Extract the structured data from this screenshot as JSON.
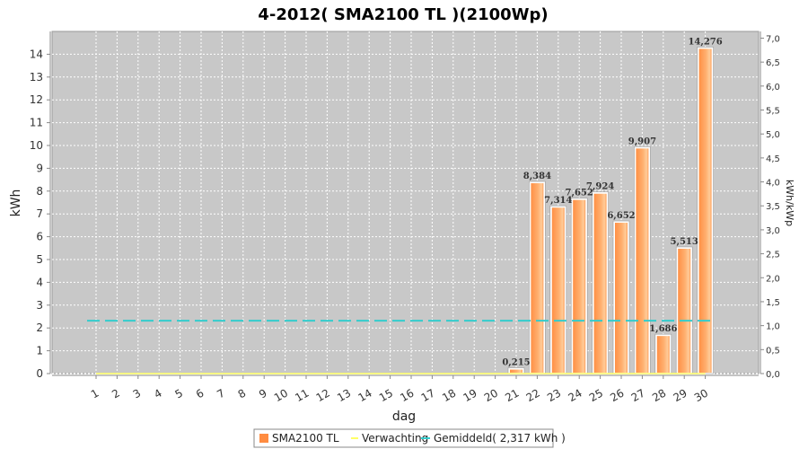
{
  "chart_data": {
    "type": "bar",
    "title": "4-2012( SMA2100 TL )(2100Wp)",
    "xlabel": "dag",
    "ylabel": "kWh",
    "ylabel_right": "kWh/kWp",
    "ylim": [
      0,
      15
    ],
    "ylim_right": [
      0,
      7.14
    ],
    "y_ticks": [
      0,
      1,
      2,
      3,
      4,
      5,
      6,
      7,
      8,
      9,
      10,
      11,
      12,
      13,
      14
    ],
    "y_right_ticks": [
      "0,0",
      "0,5",
      "1,0",
      "1,5",
      "2,0",
      "2,5",
      "3,0",
      "3,5",
      "4,0",
      "4,5",
      "5,0",
      "5,5",
      "6,0",
      "6,5",
      "7,0"
    ],
    "categories": [
      "1",
      "2",
      "3",
      "4",
      "5",
      "6",
      "7",
      "8",
      "9",
      "10",
      "11",
      "12",
      "13",
      "14",
      "15",
      "16",
      "17",
      "18",
      "19",
      "20",
      "21",
      "22",
      "23",
      "24",
      "25",
      "26",
      "27",
      "28",
      "29",
      "30"
    ],
    "series": [
      {
        "name": "SMA2100 TL",
        "kind": "bar",
        "color": "#ff8c40",
        "values": [
          0,
          0,
          0,
          0,
          0,
          0,
          0,
          0,
          0,
          0,
          0,
          0,
          0,
          0,
          0,
          0,
          0,
          0,
          0,
          0,
          0.215,
          8.384,
          7.314,
          7.652,
          7.924,
          6.652,
          9.907,
          1.686,
          5.513,
          14.276
        ],
        "labels": [
          null,
          null,
          null,
          null,
          null,
          null,
          null,
          null,
          null,
          null,
          null,
          null,
          null,
          null,
          null,
          null,
          null,
          null,
          null,
          null,
          "0,215",
          "8,384",
          "7,314",
          "7,652",
          "7,924",
          "6,652",
          "9,907",
          "1,686",
          "5,513",
          "14,276"
        ]
      },
      {
        "name": "Verwachting",
        "kind": "line",
        "color": "#ffff66",
        "values": [
          0,
          0,
          0,
          0,
          0,
          0,
          0,
          0,
          0,
          0,
          0,
          0,
          0,
          0,
          0,
          0,
          0,
          0,
          0,
          0,
          0,
          0,
          0,
          0,
          0,
          0,
          0,
          0,
          0,
          0
        ]
      },
      {
        "name": "Gemiddeld( 2,317 kWh )",
        "kind": "line",
        "style": "dashed",
        "color": "#33cccc",
        "values": [
          2.317,
          2.317,
          2.317,
          2.317,
          2.317,
          2.317,
          2.317,
          2.317,
          2.317,
          2.317,
          2.317,
          2.317,
          2.317,
          2.317,
          2.317,
          2.317,
          2.317,
          2.317,
          2.317,
          2.317,
          2.317,
          2.317,
          2.317,
          2.317,
          2.317,
          2.317,
          2.317,
          2.317,
          2.317,
          2.317
        ]
      }
    ],
    "grid": true,
    "legend_position": "bottom",
    "plot_background": "#c8c8c8"
  }
}
